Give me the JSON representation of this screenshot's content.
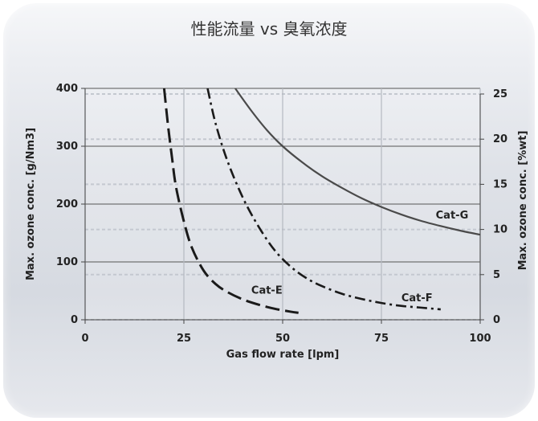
{
  "chart_data": {
    "type": "line",
    "title": "性能流量 vs 臭氧浓度",
    "xlabel": "Gas flow rate [lpm]",
    "ylabel": "Max. ozone conc. [g/Nm3]",
    "y2label": "Max. ozone conc. [%wt]",
    "xlim": [
      0,
      100
    ],
    "ylim": [
      0,
      400
    ],
    "y2lim": [
      0,
      25
    ],
    "x_ticks": [
      "0",
      "25",
      "50",
      "75",
      "100"
    ],
    "y_ticks": [
      "0",
      "100",
      "200",
      "300",
      "400"
    ],
    "y2_ticks": [
      "0",
      "5",
      "10",
      "15",
      "20",
      "25"
    ],
    "grid": true,
    "series": [
      {
        "name": "Cat-E",
        "style": "long-dash",
        "x": [
          20,
          21,
          22,
          23,
          25,
          27,
          30,
          33,
          36,
          40,
          44,
          48,
          52,
          54
        ],
        "y": [
          400,
          335,
          280,
          230,
          170,
          125,
          85,
          62,
          48,
          35,
          26,
          19,
          14,
          12
        ]
      },
      {
        "name": "Cat-F",
        "style": "dash-dot",
        "x": [
          31,
          33,
          36,
          40,
          44,
          48,
          52,
          56,
          60,
          65,
          70,
          75,
          80,
          85,
          90
        ],
        "y": [
          400,
          340,
          275,
          210,
          160,
          120,
          92,
          72,
          58,
          45,
          36,
          29,
          24,
          21,
          18
        ]
      },
      {
        "name": "Cat-G",
        "style": "solid",
        "x": [
          38,
          42,
          46,
          50,
          55,
          60,
          65,
          70,
          75,
          80,
          85,
          90,
          95,
          100
        ],
        "y": [
          400,
          362,
          328,
          300,
          272,
          248,
          228,
          210,
          195,
          182,
          171,
          162,
          154,
          147
        ]
      }
    ]
  }
}
